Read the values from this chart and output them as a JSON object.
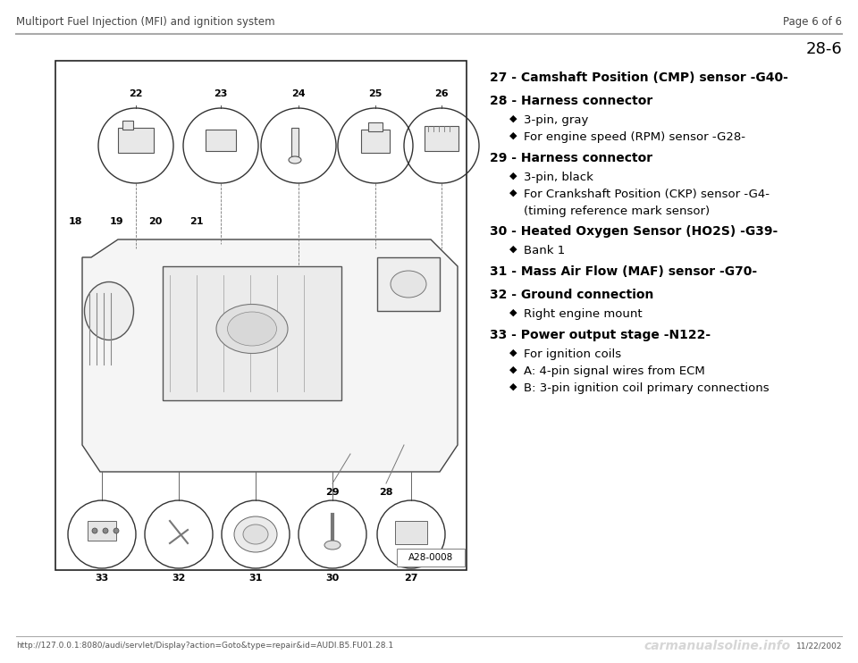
{
  "header_left": "Multiport Fuel Injection (MFI) and ignition system",
  "header_right": "Page 6 of 6",
  "page_number": "28-6",
  "footer_url": "http://127.0.0.1:8080/audi/servlet/Display?action=Goto&type=repair&id=AUDI.B5.FU01.28.1",
  "footer_date": "11/22/2002",
  "footer_watermark": "carmanualsoline.info",
  "header_line_color": "#aaaaaa",
  "bg_color": "#ffffff",
  "text_color": "#000000",
  "items": [
    {
      "number": "27",
      "bold_text": "Camshaft Position (CMP) sensor -G40-",
      "sub_items": []
    },
    {
      "number": "28",
      "bold_text": "Harness connector",
      "sub_items": [
        "3-pin, gray",
        "For engine speed (RPM) sensor -G28-"
      ]
    },
    {
      "number": "29",
      "bold_text": "Harness connector",
      "sub_items": [
        "3-pin, black",
        "For Crankshaft Position (CKP) sensor -G4-|(timing reference mark sensor)"
      ]
    },
    {
      "number": "30",
      "bold_text": "Heated Oxygen Sensor (HO2S) -G39-",
      "sub_items": [
        "Bank 1"
      ]
    },
    {
      "number": "31",
      "bold_text": "Mass Air Flow (MAF) sensor -G70-",
      "sub_items": []
    },
    {
      "number": "32",
      "bold_text": "Ground connection",
      "sub_items": [
        "Right engine mount"
      ]
    },
    {
      "number": "33",
      "bold_text": "Power output stage -N122-",
      "sub_items": [
        "For ignition coils",
        "A: 4-pin signal wires from ECM",
        "B: 3-pin ignition coil primary connections"
      ]
    }
  ],
  "diagram_label": "A28-0008",
  "top_callouts": [
    "22",
    "23",
    "24",
    "25",
    "26"
  ],
  "left_callouts": [
    "18",
    "19",
    "20",
    "21"
  ],
  "bottom_label_row": [
    "33",
    "32",
    "31",
    "30",
    "27"
  ],
  "mid_labels": [
    "29",
    "28"
  ]
}
